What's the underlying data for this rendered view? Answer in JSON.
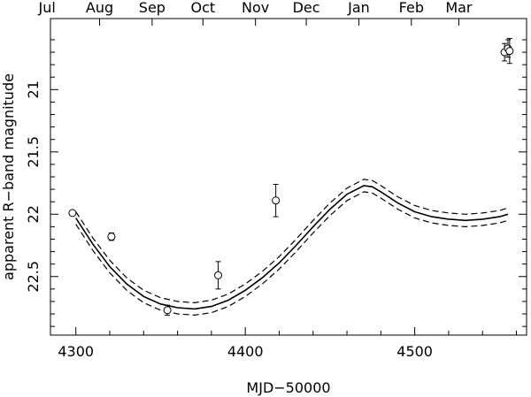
{
  "chart_data": {
    "type": "scatter",
    "title": "",
    "xlabel": "MJD−50000",
    "ylabel": "apparent R−band magnitude",
    "xlim": [
      4285,
      4566
    ],
    "ylim": [
      22.97,
      20.43
    ],
    "y_inverted": true,
    "grid": false,
    "x_ticks": [
      4300,
      4400,
      4500
    ],
    "x_tick_labels": [
      "4300",
      "4400",
      "4500"
    ],
    "y_ticks": [
      21,
      21.5,
      22,
      22.5
    ],
    "y_tick_labels": [
      "21",
      "21.5",
      "22",
      "22.5"
    ],
    "top_ticks": [
      {
        "x": 4283,
        "label": "Jul"
      },
      {
        "x": 4314,
        "label": "Aug"
      },
      {
        "x": 4345,
        "label": "Sep"
      },
      {
        "x": 4375,
        "label": "Oct"
      },
      {
        "x": 4406,
        "label": "Nov"
      },
      {
        "x": 4436,
        "label": "Dec"
      },
      {
        "x": 4467,
        "label": "Jan"
      },
      {
        "x": 4498,
        "label": "Feb"
      },
      {
        "x": 4526,
        "label": "Mar"
      }
    ],
    "observations": [
      {
        "x": 4298,
        "y": 21.99,
        "err": 0.02
      },
      {
        "x": 4321,
        "y": 22.18,
        "err": 0.03
      },
      {
        "x": 4354,
        "y": 22.77,
        "err": 0.04
      },
      {
        "x": 4384,
        "y": 22.49,
        "err": 0.11
      },
      {
        "x": 4418,
        "y": 21.89,
        "err": 0.13
      },
      {
        "x": 4553,
        "y": 20.7,
        "err": 0.07
      },
      {
        "x": 4555,
        "y": 20.67,
        "err": 0.07
      },
      {
        "x": 4556,
        "y": 20.69,
        "err": 0.1
      }
    ],
    "model": {
      "x": [
        4300,
        4310,
        4320,
        4330,
        4340,
        4350,
        4360,
        4370,
        4380,
        4390,
        4400,
        4410,
        4420,
        4430,
        4440,
        4450,
        4460,
        4470,
        4475,
        4480,
        4490,
        4500,
        4510,
        4520,
        4530,
        4540,
        4550,
        4555
      ],
      "y": [
        22.03,
        22.24,
        22.42,
        22.56,
        22.66,
        22.72,
        22.75,
        22.76,
        22.74,
        22.69,
        22.61,
        22.51,
        22.39,
        22.25,
        22.1,
        21.96,
        21.84,
        21.77,
        21.78,
        21.82,
        21.91,
        21.98,
        22.02,
        22.04,
        22.05,
        22.04,
        22.02,
        22.0
      ],
      "spread": 0.05
    }
  }
}
